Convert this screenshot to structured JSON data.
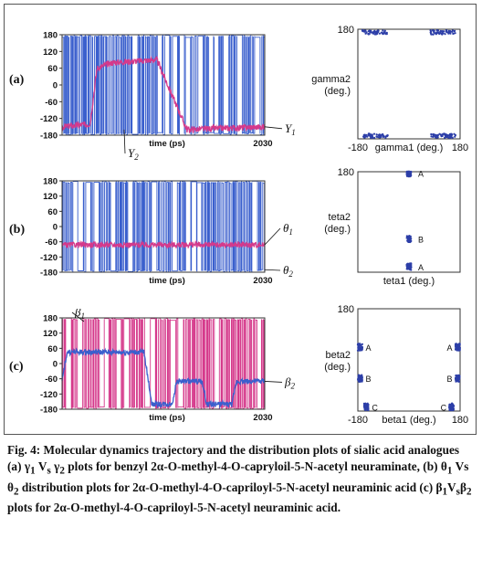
{
  "chart_data": [
    {
      "type": "line",
      "panel": "(a)",
      "xlabel": "time (ps)",
      "x_end_label": "2030",
      "xlim": [
        0,
        2030
      ],
      "ylim": [
        -180,
        180
      ],
      "yticks": [
        "180",
        "120",
        "60",
        "0",
        "-60",
        "-120",
        "-180"
      ],
      "series": [
        {
          "name": "γ1",
          "label_main": "Y",
          "label_sub": "1",
          "color": "#3a5fcd",
          "pattern": "switching between -180 and 180"
        },
        {
          "name": "γ2",
          "label_main": "Y",
          "label_sub": "2",
          "color": "#d5398b",
          "segments": [
            [
              0,
              -150
            ],
            [
              280,
              -140
            ],
            [
              350,
              60
            ],
            [
              500,
              80
            ],
            [
              950,
              90
            ],
            [
              1250,
              -160
            ],
            [
              2030,
              -150
            ]
          ]
        }
      ]
    },
    {
      "type": "scatter",
      "xlabel": "gamma1 (deg.)",
      "ylabel_line1": "gamma2",
      "ylabel_line2": "(deg.)",
      "xlim": [
        -180,
        180
      ],
      "ylim": [
        -180,
        180
      ],
      "xtick_labels": [
        "-180",
        "180"
      ],
      "ytick_labels": [
        "180"
      ],
      "clusters": [
        {
          "x": -120,
          "y": 170
        },
        {
          "x": 120,
          "y": 170
        },
        {
          "x": -120,
          "y": -170
        },
        {
          "x": 120,
          "y": -170
        }
      ]
    },
    {
      "type": "line",
      "panel": "(b)",
      "xlabel": "time (ps)",
      "x_end_label": "2030",
      "xlim": [
        0,
        2030
      ],
      "ylim": [
        -180,
        180
      ],
      "yticks": [
        "180",
        "120",
        "60",
        "0",
        "-60",
        "-120",
        "-180"
      ],
      "series": [
        {
          "name": "θ1",
          "label_main": "θ",
          "label_sub": "1",
          "color": "#d5398b",
          "segments": [
            [
              0,
              -72
            ],
            [
              2030,
              -72
            ]
          ]
        },
        {
          "name": "θ2",
          "label_main": "θ",
          "label_sub": "2",
          "color": "#3a5fcd",
          "pattern": "switching between -180 and 180"
        }
      ]
    },
    {
      "type": "scatter",
      "xlabel": "teta1 (deg.)",
      "ylabel_line1": "teta2",
      "ylabel_line2": "(deg.)",
      "xlim": [
        -180,
        180
      ],
      "ylim": [
        -180,
        180
      ],
      "xtick_labels": [],
      "ytick_labels": [
        "180"
      ],
      "clusters": [
        {
          "x": 0,
          "y": 175,
          "label": "A"
        },
        {
          "x": 0,
          "y": -60,
          "label": "B"
        },
        {
          "x": 0,
          "y": -160,
          "label": "A"
        }
      ]
    },
    {
      "type": "line",
      "panel": "(c)",
      "xlabel": "time (ps)",
      "x_end_label": "2030",
      "xlim": [
        0,
        2030
      ],
      "ylim": [
        -180,
        180
      ],
      "yticks": [
        "180",
        "120",
        "60",
        "0",
        "-60",
        "-120",
        "-180"
      ],
      "series": [
        {
          "name": "β1",
          "label_main": "β",
          "label_sub": "1",
          "color": "#d5398b",
          "pattern": "switching between -180 and 180"
        },
        {
          "name": "β2",
          "label_main": "β",
          "label_sub": "2",
          "color": "#3a5fcd",
          "segments": [
            [
              0,
              -70
            ],
            [
              50,
              45
            ],
            [
              820,
              45
            ],
            [
              900,
              -160
            ],
            [
              1100,
              -160
            ],
            [
              1150,
              -70
            ],
            [
              1400,
              -70
            ],
            [
              1450,
              -160
            ],
            [
              1700,
              -160
            ],
            [
              1750,
              -70
            ],
            [
              2030,
              -70
            ]
          ]
        }
      ]
    },
    {
      "type": "scatter",
      "xlabel": "beta1 (deg.)",
      "ylabel_line1": "beta2",
      "ylabel_line2": "(deg.)",
      "xlim": [
        -180,
        180
      ],
      "ylim": [
        -180,
        180
      ],
      "xtick_labels": [
        "-180",
        "180"
      ],
      "ytick_labels": [
        "180"
      ],
      "clusters": [
        {
          "x": -172,
          "y": 45,
          "label": "A"
        },
        {
          "x": 172,
          "y": 45,
          "label": "A"
        },
        {
          "x": -172,
          "y": -65,
          "label": "B"
        },
        {
          "x": 172,
          "y": -65,
          "label": "B"
        },
        {
          "x": -150,
          "y": -165,
          "label": "C"
        },
        {
          "x": 150,
          "y": -165,
          "label": "C"
        }
      ]
    }
  ],
  "caption": {
    "title": "Fig. 4: Molecular dynamics trajectory and the distribution plots of sialic acid analogues",
    "desc_part1": "(a) γ",
    "desc_sub1": "1",
    "desc_part2": " V",
    "desc_sub2": "s",
    "desc_part3": " γ",
    "desc_sub3": "2",
    "desc_part4": " plots for benzyl 2α-O-methyl-4-O-capryloil-5-N-acetyl neuraminate, (b) θ",
    "desc_sub4": "1",
    "desc_part5": " Vs θ",
    "desc_sub5": "2",
    "desc_part6": " distribution plots for 2α-O-methyl-4-O-capriloyl-5-N-acetyl neuraminic acid (c) β",
    "desc_sub6": "1",
    "desc_part7": "V",
    "desc_sub7": "s",
    "desc_part8": "β",
    "desc_sub8": "2",
    "desc_part9": " plots for 2α-O-methyl-4-O-capriloyl-5-N-acetyl neuraminic acid."
  }
}
